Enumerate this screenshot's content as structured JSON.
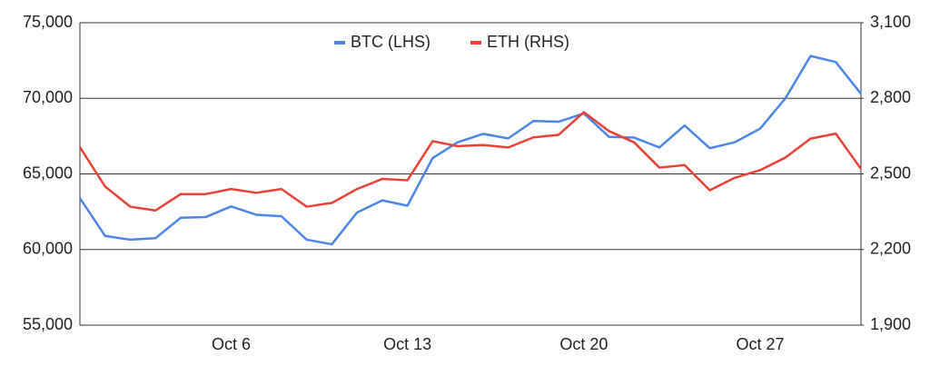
{
  "chart_data": {
    "type": "line",
    "categories": [
      null,
      null,
      null,
      null,
      null,
      null,
      "Oct 6",
      null,
      null,
      null,
      null,
      null,
      null,
      "Oct 13",
      null,
      null,
      null,
      null,
      null,
      null,
      "Oct 20",
      null,
      null,
      null,
      null,
      null,
      null,
      "Oct 27",
      null,
      null,
      null,
      null
    ],
    "series": [
      {
        "name": "BTC (LHS)",
        "color": "#4a86e8",
        "values": [
          63400,
          60900,
          60650,
          60750,
          62100,
          62150,
          62850,
          62300,
          62200,
          60650,
          60350,
          62450,
          63250,
          62900,
          66050,
          67100,
          67650,
          67350,
          68500,
          68450,
          69000,
          67450,
          67400,
          66750,
          68200,
          66700,
          67100,
          68000,
          70000,
          72800,
          72400,
          70300
        ]
      },
      {
        "name": "ETH (RHS)",
        "color": "#e94235",
        "axis": "y2",
        "values": [
          2606,
          2450,
          2370,
          2355,
          2420,
          2420,
          2440,
          2425,
          2440,
          2370,
          2385,
          2440,
          2480,
          2475,
          2630,
          2610,
          2615,
          2605,
          2645,
          2655,
          2745,
          2670,
          2625,
          2525,
          2535,
          2435,
          2485,
          2515,
          2565,
          2640,
          2660,
          2520
        ]
      }
    ],
    "ylim": [
      55000,
      75000
    ],
    "yticks": [
      {
        "value": 55000,
        "label": "55,000"
      },
      {
        "value": 60000,
        "label": "60,000"
      },
      {
        "value": 65000,
        "label": "65,000"
      },
      {
        "value": 70000,
        "label": "70,000"
      },
      {
        "value": 75000,
        "label": "75,000"
      }
    ],
    "y2lim": [
      1900,
      3100
    ],
    "y2ticks": [
      {
        "value": 1900,
        "label": "1,900"
      },
      {
        "value": 2200,
        "label": "2,200"
      },
      {
        "value": 2500,
        "label": "2,500"
      },
      {
        "value": 2800,
        "label": "2,800"
      },
      {
        "value": 3100,
        "label": "3,100"
      }
    ],
    "grid": true,
    "legend": "top"
  }
}
